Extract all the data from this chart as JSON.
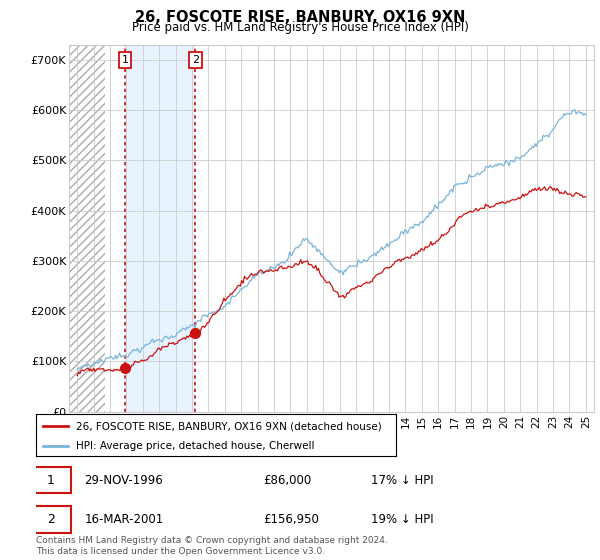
{
  "title": "26, FOSCOTE RISE, BANBURY, OX16 9XN",
  "subtitle": "Price paid vs. HM Land Registry's House Price Index (HPI)",
  "ylim": [
    0,
    730000
  ],
  "yticks": [
    0,
    100000,
    200000,
    300000,
    400000,
    500000,
    600000,
    700000
  ],
  "ytick_labels": [
    "£0",
    "£100K",
    "£200K",
    "£300K",
    "£400K",
    "£500K",
    "£600K",
    "£700K"
  ],
  "hpi_color": "#7ab5d8",
  "price_color": "#cc1111",
  "sale1_date": 1996.92,
  "sale1_price": 86000,
  "sale2_date": 2001.21,
  "sale2_price": 156950,
  "legend_price_label": "26, FOSCOTE RISE, BANBURY, OX16 9XN (detached house)",
  "legend_hpi_label": "HPI: Average price, detached house, Cherwell",
  "table_row1": [
    "1",
    "29-NOV-1996",
    "£86,000",
    "17% ↓ HPI"
  ],
  "table_row2": [
    "2",
    "16-MAR-2001",
    "£156,950",
    "19% ↓ HPI"
  ],
  "footnote": "Contains HM Land Registry data © Crown copyright and database right 2024.\nThis data is licensed under the Open Government Licence v3.0.",
  "xmin": 1993.5,
  "xmax": 2025.5,
  "hatch_end": 1995.7,
  "blue_shade_color": "#ddeeff"
}
